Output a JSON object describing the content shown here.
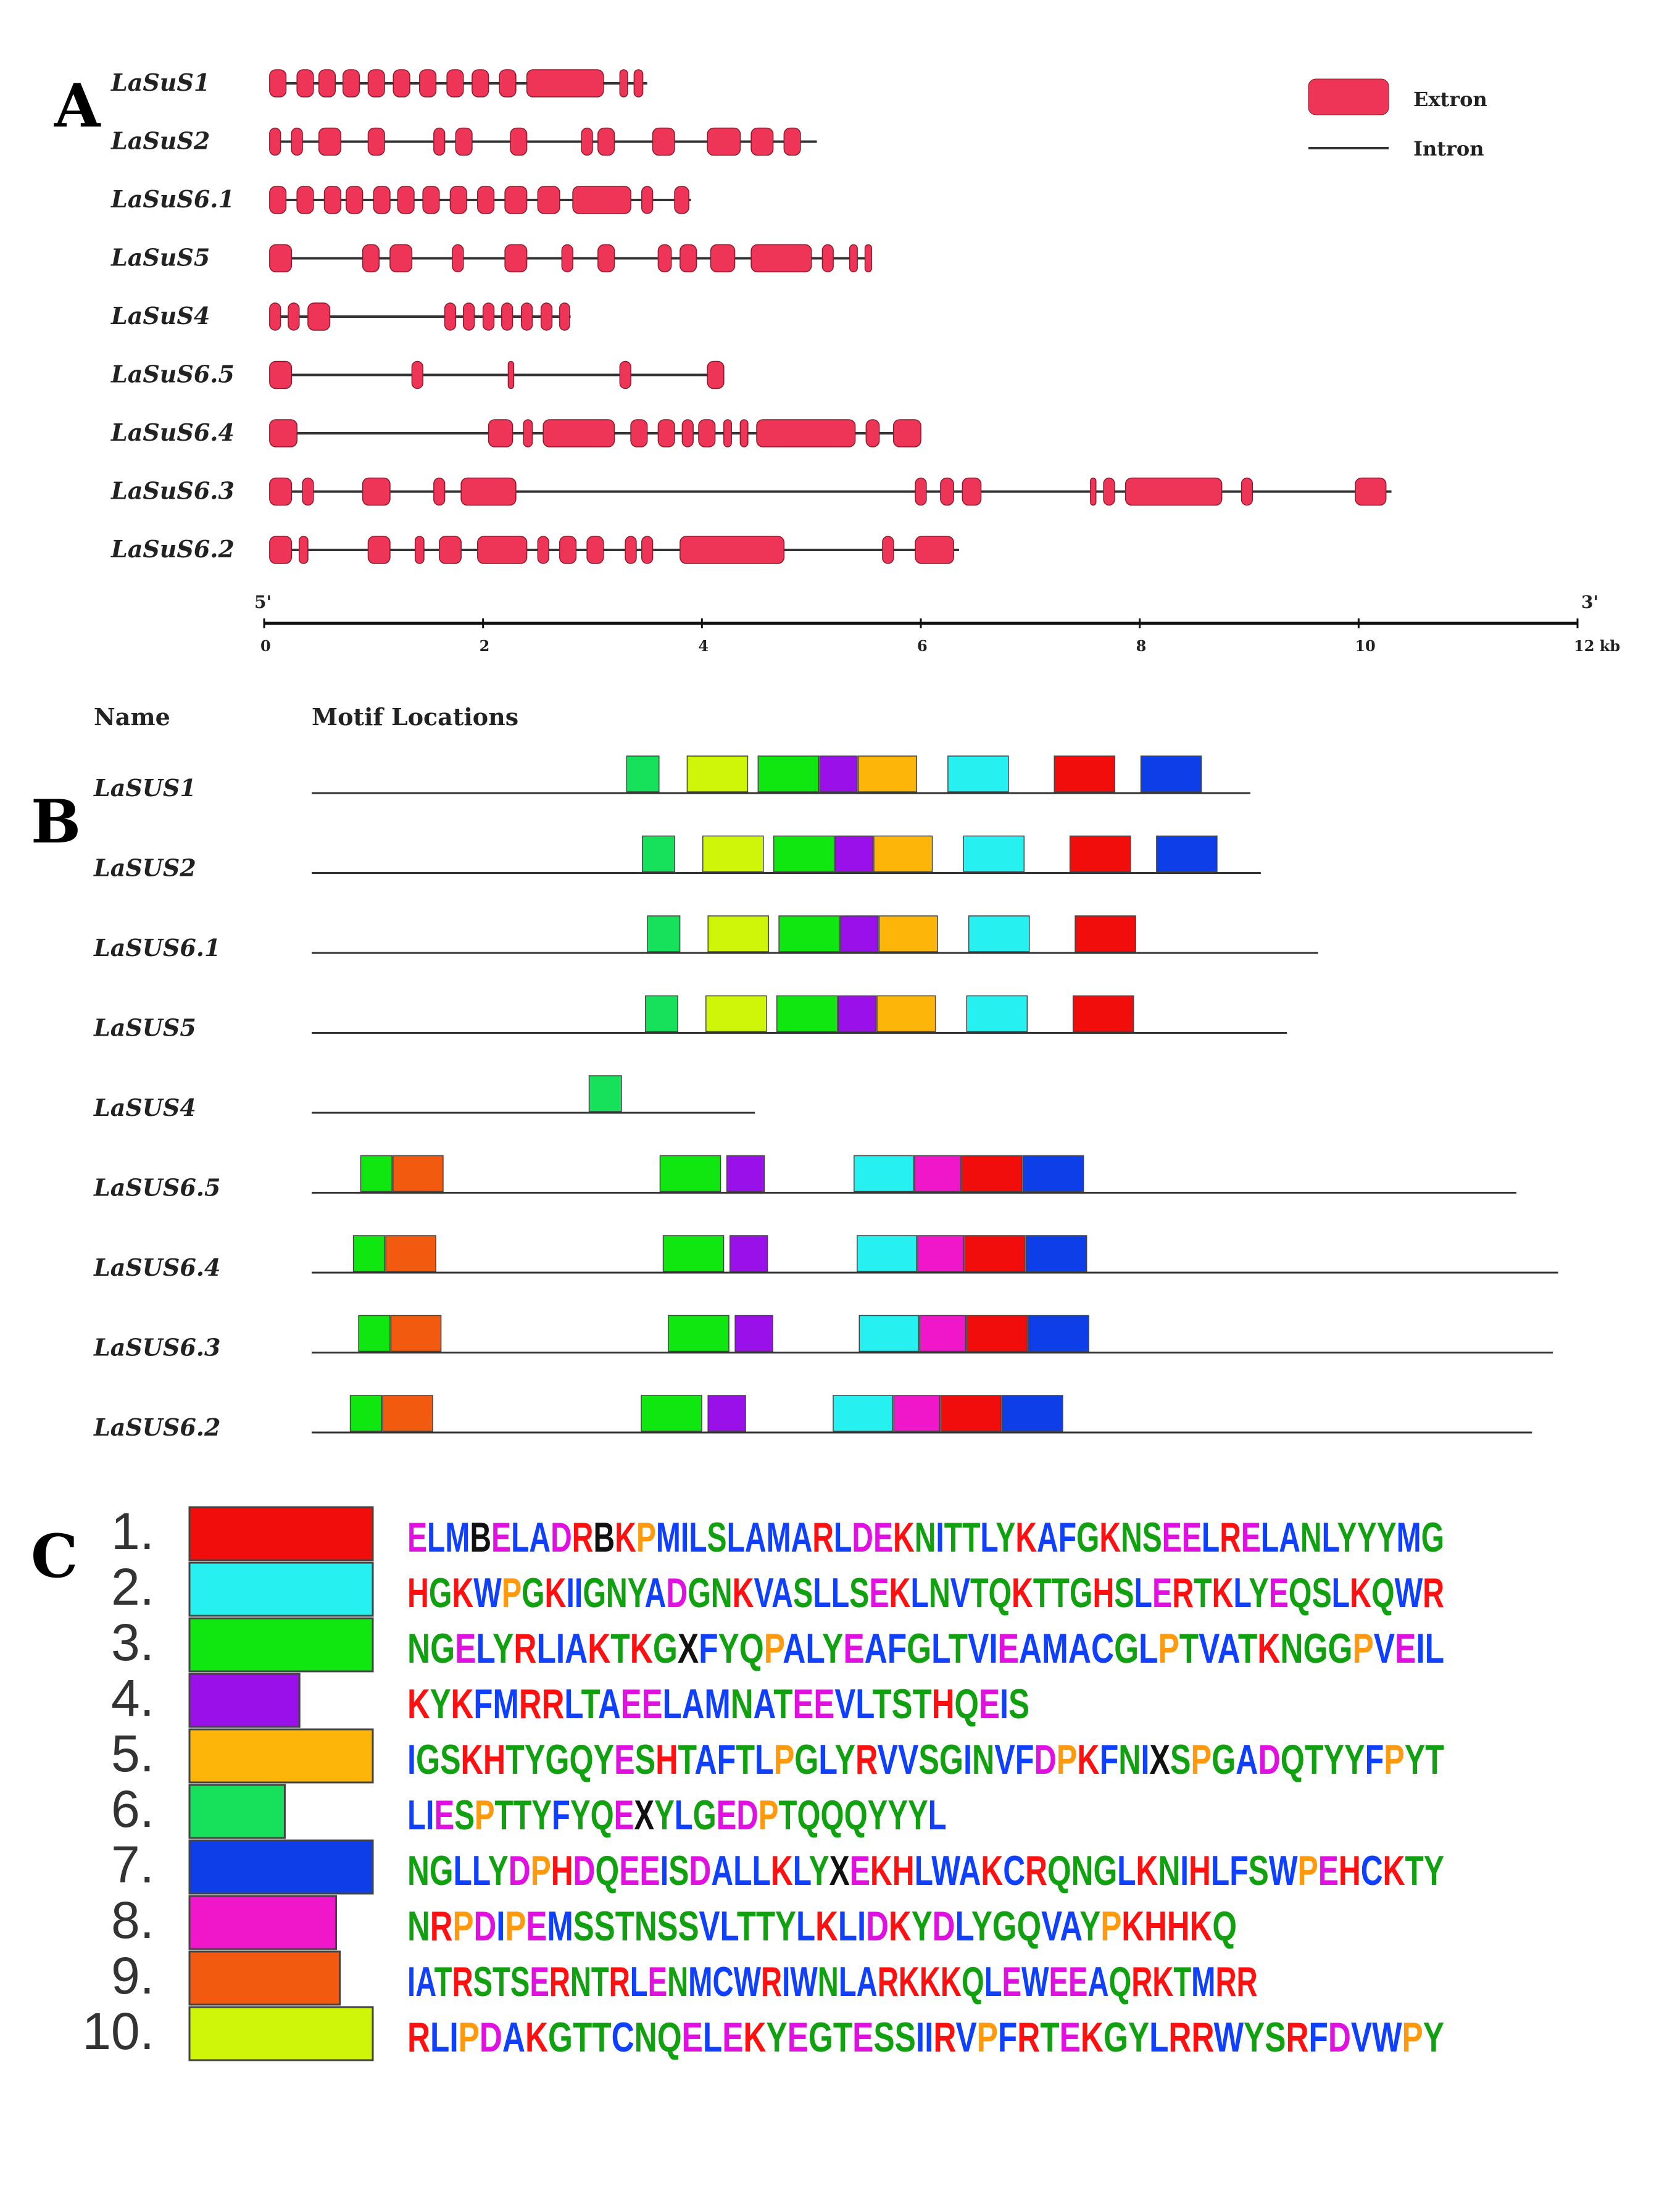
{
  "panels": {
    "a": "A",
    "b": "B",
    "c": "C"
  },
  "panel_a": {
    "legend": {
      "exon": "Extron",
      "intron": "Intron"
    },
    "legend_colors": {
      "exon": "#ee3557",
      "intron": "#333333"
    },
    "axis": {
      "end5": "5'",
      "end3": "3'",
      "ticks": [
        "0",
        "2",
        "4",
        "6",
        "8",
        "10",
        "12 kb"
      ],
      "max_kb": 12
    },
    "genes": [
      {
        "name": "LaSuS1",
        "length": 3.5,
        "exons": [
          [
            0.05,
            0.2
          ],
          [
            0.3,
            0.45
          ],
          [
            0.5,
            0.65
          ],
          [
            0.72,
            0.87
          ],
          [
            0.95,
            1.1
          ],
          [
            1.18,
            1.33
          ],
          [
            1.42,
            1.57
          ],
          [
            1.67,
            1.82
          ],
          [
            1.9,
            2.05
          ],
          [
            2.15,
            2.3
          ],
          [
            2.4,
            3.1
          ],
          [
            3.25,
            3.32
          ],
          [
            3.38,
            3.46
          ]
        ]
      },
      {
        "name": "LaSuS2",
        "length": 5.05,
        "exons": [
          [
            0.05,
            0.15
          ],
          [
            0.25,
            0.35
          ],
          [
            0.5,
            0.7
          ],
          [
            0.95,
            1.1
          ],
          [
            1.55,
            1.65
          ],
          [
            1.75,
            1.9
          ],
          [
            2.25,
            2.4
          ],
          [
            2.9,
            3.0
          ],
          [
            3.05,
            3.2
          ],
          [
            3.55,
            3.75
          ],
          [
            4.05,
            4.35
          ],
          [
            4.45,
            4.65
          ],
          [
            4.75,
            4.9
          ]
        ]
      },
      {
        "name": "LaSuS6.1",
        "length": 3.9,
        "exons": [
          [
            0.05,
            0.2
          ],
          [
            0.3,
            0.45
          ],
          [
            0.55,
            0.7
          ],
          [
            0.75,
            0.9
          ],
          [
            1.0,
            1.15
          ],
          [
            1.22,
            1.37
          ],
          [
            1.45,
            1.6
          ],
          [
            1.7,
            1.85
          ],
          [
            1.95,
            2.1
          ],
          [
            2.2,
            2.4
          ],
          [
            2.5,
            2.7
          ],
          [
            2.82,
            3.35
          ],
          [
            3.45,
            3.55
          ],
          [
            3.75,
            3.88
          ]
        ]
      },
      {
        "name": "LaSuS5",
        "length": 5.55,
        "exons": [
          [
            0.05,
            0.25
          ],
          [
            0.9,
            1.05
          ],
          [
            1.15,
            1.35
          ],
          [
            1.72,
            1.82
          ],
          [
            2.2,
            2.4
          ],
          [
            2.72,
            2.82
          ],
          [
            3.05,
            3.2
          ],
          [
            3.6,
            3.72
          ],
          [
            3.8,
            3.95
          ],
          [
            4.08,
            4.3
          ],
          [
            4.45,
            5.0
          ],
          [
            5.1,
            5.2
          ],
          [
            5.35,
            5.42
          ],
          [
            5.49,
            5.55
          ]
        ]
      },
      {
        "name": "LaSuS4",
        "length": 2.8,
        "exons": [
          [
            0.05,
            0.15
          ],
          [
            0.22,
            0.32
          ],
          [
            0.4,
            0.6
          ],
          [
            1.65,
            1.75
          ],
          [
            1.82,
            1.92
          ],
          [
            2.0,
            2.1
          ],
          [
            2.17,
            2.27
          ],
          [
            2.35,
            2.45
          ],
          [
            2.53,
            2.63
          ],
          [
            2.7,
            2.79
          ]
        ]
      },
      {
        "name": "LaSuS6.5",
        "length": 4.2,
        "exons": [
          [
            0.05,
            0.25
          ],
          [
            1.35,
            1.45
          ],
          [
            2.23,
            2.28
          ],
          [
            3.25,
            3.35
          ],
          [
            4.05,
            4.2
          ]
        ]
      },
      {
        "name": "LaSuS6.4",
        "length": 6.0,
        "exons": [
          [
            0.05,
            0.3
          ],
          [
            2.05,
            2.27
          ],
          [
            2.37,
            2.45
          ],
          [
            2.55,
            3.2
          ],
          [
            3.35,
            3.5
          ],
          [
            3.6,
            3.75
          ],
          [
            3.82,
            3.92
          ],
          [
            3.97,
            4.12
          ],
          [
            4.2,
            4.27
          ],
          [
            4.35,
            4.42
          ],
          [
            4.5,
            5.4
          ],
          [
            5.5,
            5.62
          ],
          [
            5.75,
            6.0
          ]
        ]
      },
      {
        "name": "LaSuS6.3",
        "length": 10.3,
        "exons": [
          [
            0.05,
            0.25
          ],
          [
            0.35,
            0.45
          ],
          [
            0.9,
            1.15
          ],
          [
            1.55,
            1.65
          ],
          [
            1.8,
            2.3
          ],
          [
            5.95,
            6.05
          ],
          [
            6.18,
            6.3
          ],
          [
            6.38,
            6.55
          ],
          [
            7.55,
            7.6
          ],
          [
            7.67,
            7.77
          ],
          [
            7.87,
            8.75
          ],
          [
            8.93,
            9.03
          ],
          [
            9.97,
            10.25
          ]
        ]
      },
      {
        "name": "LaSuS6.2",
        "length": 6.35,
        "exons": [
          [
            0.05,
            0.25
          ],
          [
            0.32,
            0.4
          ],
          [
            0.95,
            1.15
          ],
          [
            1.38,
            1.46
          ],
          [
            1.6,
            1.8
          ],
          [
            1.95,
            2.4
          ],
          [
            2.5,
            2.6
          ],
          [
            2.7,
            2.85
          ],
          [
            2.95,
            3.1
          ],
          [
            3.3,
            3.4
          ],
          [
            3.45,
            3.55
          ],
          [
            3.8,
            4.75
          ],
          [
            5.65,
            5.75
          ],
          [
            5.95,
            6.3
          ]
        ]
      }
    ]
  },
  "panel_b": {
    "header": {
      "name": "Name",
      "loc": "Motif Locations"
    },
    "motif_colors": {
      "1": "#f20d0d",
      "2": "#27f0f0",
      "3": "#10e610",
      "4": "#9a10e8",
      "5": "#fdb50a",
      "6": "#17e05a",
      "7": "#0e3ee8",
      "8": "#f016c9",
      "9": "#f25a10",
      "10": "#cff508"
    },
    "seqs": [
      {
        "name": "LaSUS1",
        "length": 900,
        "motifs": [
          {
            "m": "6",
            "s": 302,
            "e": 333
          },
          {
            "m": "10",
            "s": 360,
            "e": 418
          },
          {
            "m": "3",
            "s": 428,
            "e": 486
          },
          {
            "m": "4",
            "s": 487,
            "e": 523
          },
          {
            "m": "5",
            "s": 524,
            "e": 580
          },
          {
            "m": "2",
            "s": 610,
            "e": 668
          },
          {
            "m": "1",
            "s": 712,
            "e": 770
          },
          {
            "m": "7",
            "s": 795,
            "e": 853
          }
        ]
      },
      {
        "name": "LaSUS2",
        "length": 910,
        "motifs": [
          {
            "m": "6",
            "s": 317,
            "e": 348
          },
          {
            "m": "10",
            "s": 375,
            "e": 433
          },
          {
            "m": "3",
            "s": 443,
            "e": 501
          },
          {
            "m": "4",
            "s": 502,
            "e": 538
          },
          {
            "m": "5",
            "s": 539,
            "e": 595
          },
          {
            "m": "2",
            "s": 625,
            "e": 683
          },
          {
            "m": "1",
            "s": 727,
            "e": 785
          },
          {
            "m": "7",
            "s": 810,
            "e": 868
          }
        ]
      },
      {
        "name": "LaSUS6.1",
        "length": 965,
        "motifs": [
          {
            "m": "6",
            "s": 322,
            "e": 353
          },
          {
            "m": "10",
            "s": 380,
            "e": 438
          },
          {
            "m": "3",
            "s": 448,
            "e": 506
          },
          {
            "m": "4",
            "s": 507,
            "e": 543
          },
          {
            "m": "5",
            "s": 544,
            "e": 600
          },
          {
            "m": "2",
            "s": 630,
            "e": 688
          },
          {
            "m": "1",
            "s": 732,
            "e": 790
          }
        ]
      },
      {
        "name": "LaSUS5",
        "length": 935,
        "motifs": [
          {
            "m": "6",
            "s": 320,
            "e": 351
          },
          {
            "m": "10",
            "s": 378,
            "e": 436
          },
          {
            "m": "3",
            "s": 446,
            "e": 504
          },
          {
            "m": "4",
            "s": 505,
            "e": 541
          },
          {
            "m": "5",
            "s": 542,
            "e": 598
          },
          {
            "m": "2",
            "s": 628,
            "e": 686
          },
          {
            "m": "1",
            "s": 730,
            "e": 788
          }
        ]
      },
      {
        "name": "LaSUS4",
        "length": 425,
        "motifs": [
          {
            "m": "6",
            "s": 266,
            "e": 297
          }
        ]
      },
      {
        "name": "LaSUS6.5",
        "length": 1155,
        "motifs": [
          {
            "m": "3",
            "s": 47,
            "e": 77
          },
          {
            "m": "9",
            "s": 78,
            "e": 126
          },
          {
            "m": "3",
            "s": 334,
            "e": 392
          },
          {
            "m": "4",
            "s": 398,
            "e": 434
          },
          {
            "m": "2",
            "s": 520,
            "e": 577
          },
          {
            "m": "8",
            "s": 578,
            "e": 622
          },
          {
            "m": "1",
            "s": 623,
            "e": 681
          },
          {
            "m": "7",
            "s": 682,
            "e": 740
          }
        ]
      },
      {
        "name": "LaSUS6.4",
        "length": 1195,
        "motifs": [
          {
            "m": "3",
            "s": 40,
            "e": 70
          },
          {
            "m": "9",
            "s": 71,
            "e": 119
          },
          {
            "m": "3",
            "s": 337,
            "e": 395
          },
          {
            "m": "4",
            "s": 401,
            "e": 437
          },
          {
            "m": "2",
            "s": 523,
            "e": 580
          },
          {
            "m": "8",
            "s": 581,
            "e": 625
          },
          {
            "m": "1",
            "s": 626,
            "e": 684
          },
          {
            "m": "7",
            "s": 685,
            "e": 743
          }
        ]
      },
      {
        "name": "LaSUS6.3",
        "length": 1190,
        "motifs": [
          {
            "m": "3",
            "s": 45,
            "e": 75
          },
          {
            "m": "9",
            "s": 76,
            "e": 124
          },
          {
            "m": "3",
            "s": 342,
            "e": 400
          },
          {
            "m": "4",
            "s": 406,
            "e": 442
          },
          {
            "m": "2",
            "s": 525,
            "e": 582
          },
          {
            "m": "8",
            "s": 583,
            "e": 627
          },
          {
            "m": "1",
            "s": 628,
            "e": 686
          },
          {
            "m": "7",
            "s": 687,
            "e": 745
          }
        ]
      },
      {
        "name": "LaSUS6.2",
        "length": 1170,
        "motifs": [
          {
            "m": "3",
            "s": 37,
            "e": 67
          },
          {
            "m": "9",
            "s": 68,
            "e": 116
          },
          {
            "m": "3",
            "s": 316,
            "e": 374
          },
          {
            "m": "4",
            "s": 380,
            "e": 416
          },
          {
            "m": "2",
            "s": 500,
            "e": 557
          },
          {
            "m": "8",
            "s": 558,
            "e": 602
          },
          {
            "m": "1",
            "s": 603,
            "e": 661
          },
          {
            "m": "7",
            "s": 662,
            "e": 720
          }
        ]
      }
    ]
  },
  "panel_c": {
    "motifs": [
      {
        "num": "1.",
        "color": "#f20d0d",
        "width": 1.0,
        "logo": "ELMBELADRBKPMILSLAMARLDEKNITTLYKAFGKNSEELRELANLYYYMG"
      },
      {
        "num": "2.",
        "color": "#27f0f0",
        "width": 1.0,
        "logo": "HGKWPGKIIGNYADGNKVASLLSEKLNVTQKTTGHSLERTKLYEQSLKQWR"
      },
      {
        "num": "3.",
        "color": "#10e610",
        "width": 1.0,
        "logo": "NGELYRLIAKTKGXFYQPALYEAFGLTVIEAMACGLPTVATKNGGPVEIL"
      },
      {
        "num": "4.",
        "color": "#9a10e8",
        "width": 0.6,
        "logo": "KYKFMRRLTAEELAMNATEEVLTSTHQEIS"
      },
      {
        "num": "5.",
        "color": "#fdb50a",
        "width": 1.0,
        "logo": "IGSKHTYGQYESHTAFTLPGLYRVVSGINVFDPKFNIXSPGADQTYYFPYT"
      },
      {
        "num": "6.",
        "color": "#17e05a",
        "width": 0.52,
        "logo": "LIESPTTYFYQEXYLGEDPTQQQYYYL"
      },
      {
        "num": "7.",
        "color": "#0e3ee8",
        "width": 1.0,
        "logo": "NGLLYDPHDQEEISDALLKLYXEKHLWAKCRQNGLKNIHLFSWPEHCKTY"
      },
      {
        "num": "8.",
        "color": "#f016c9",
        "width": 0.8,
        "logo": "NRPDIPEMSSTNSSVLTTYLKLIDKYDLYGQVAYPKHHKQ"
      },
      {
        "num": "9.",
        "color": "#f25a10",
        "width": 0.82,
        "logo": "IATRSTSERNTRLENMCWRIWNLARKKKQLEWEEAQRKTMRR"
      },
      {
        "num": "10.",
        "color": "#cff508",
        "width": 1.0,
        "logo": "RLIPDAKGTTCNQELEKYEGTESSIIRVPFRTEKGYLRRWYSRFDVWPY"
      }
    ],
    "aa_colors": {
      "hydrophobic": "#1040ff",
      "polar": "#10a010",
      "basic": "#ff1010",
      "acidic": "#e010e0",
      "neutral": "#111111",
      "special": "#ff9a10"
    }
  }
}
